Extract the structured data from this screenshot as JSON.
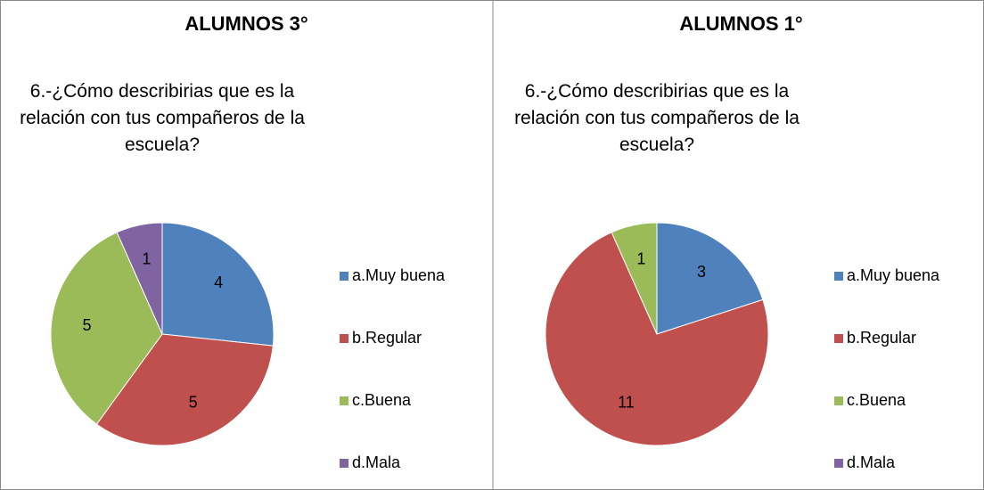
{
  "chart_data": [
    {
      "type": "pie",
      "title": "ALUMNOS 3°",
      "subtitle": "6.-¿Cómo describirias que es la relación con tus compañeros de la escuela?",
      "categories": [
        "a.Muy buena",
        "b.Regular",
        "c.Buena",
        "d.Mala"
      ],
      "values": [
        4,
        5,
        5,
        1
      ],
      "colors": [
        "#4f81bd",
        "#c0504d",
        "#9bbb59",
        "#8064a2"
      ]
    },
    {
      "type": "pie",
      "title": "ALUMNOS 1°",
      "subtitle": "6.-¿Cómo describirias que es la relación con tus compañeros de la escuela?",
      "categories": [
        "a.Muy buena",
        "b.Regular",
        "c.Buena",
        "d.Mala"
      ],
      "values": [
        3,
        11,
        1,
        0
      ],
      "colors": [
        "#4f81bd",
        "#c0504d",
        "#9bbb59",
        "#8064a2"
      ]
    }
  ]
}
